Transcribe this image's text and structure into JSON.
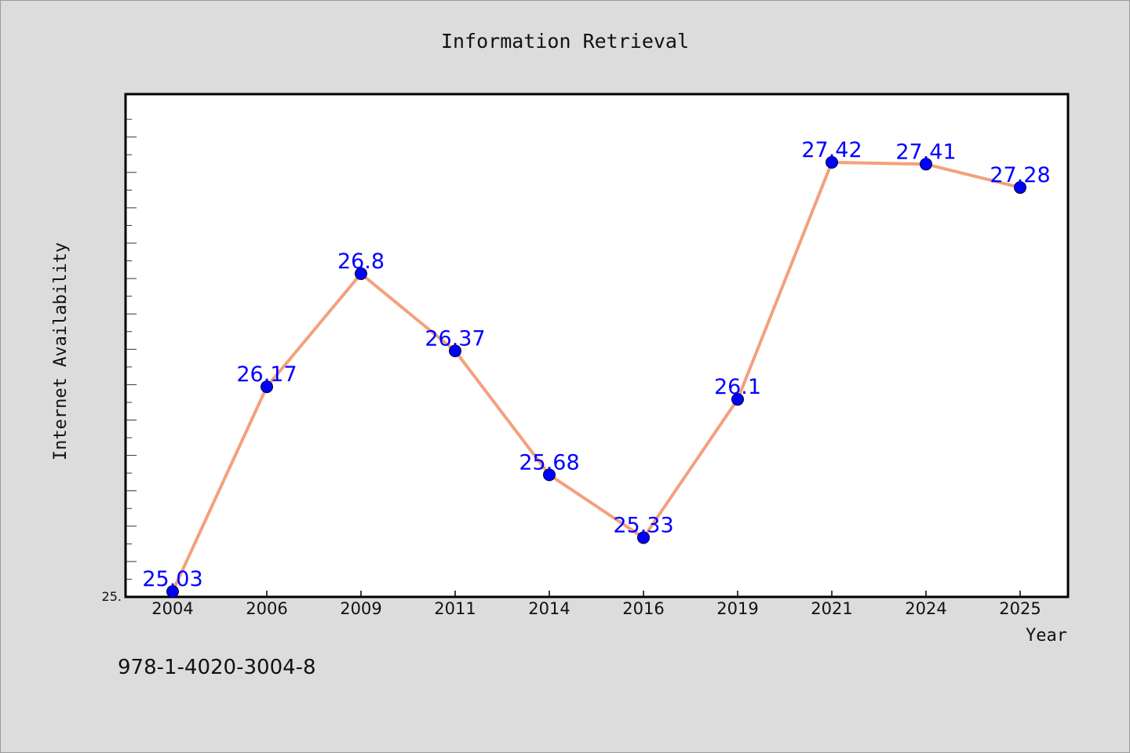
{
  "chart_data": {
    "type": "line",
    "title": "Information Retrieval",
    "xlabel": "Year",
    "ylabel": "Internet Availability",
    "categories": [
      "2004",
      "2006",
      "2009",
      "2011",
      "2014",
      "2016",
      "2019",
      "2021",
      "2024",
      "2025"
    ],
    "series": [
      {
        "values": [
          25.03,
          26.17,
          26.8,
          26.37,
          25.68,
          25.33,
          26.1,
          27.42,
          27.41,
          27.28
        ],
        "line_color": "#f4a07e",
        "marker_color": "#0000ff"
      }
    ],
    "ylim": [
      25.0,
      27.8
    ],
    "y_tick_label": "25.",
    "label_color": "#0000ff",
    "grid": false,
    "legend": "none"
  },
  "footer": {
    "code": "978-1-4020-3004-8"
  }
}
